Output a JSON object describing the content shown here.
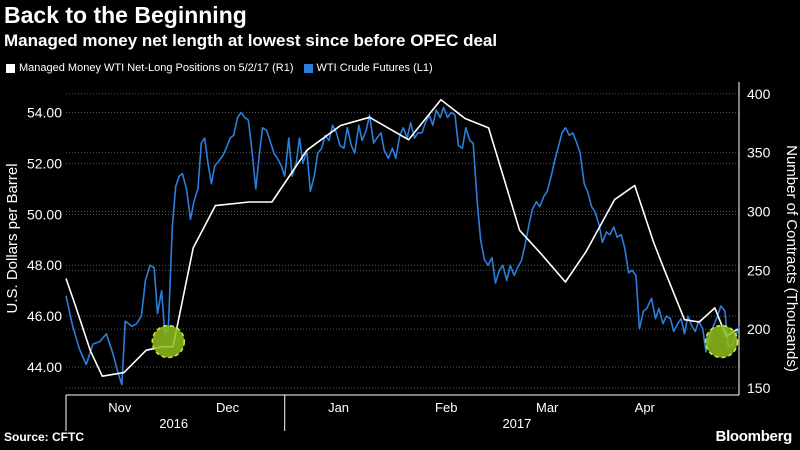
{
  "header": {
    "title": "Back to the Beginning",
    "subtitle": "Managed money net length at lowest since before OPEC deal"
  },
  "footer": {
    "source": "Source: CFTC",
    "brand": "Bloomberg"
  },
  "colors": {
    "background": "#000000",
    "managed_money": "#ffffff",
    "wti": "#2a7fdc",
    "highlight": "#8fbf1f",
    "grid": "#555555"
  },
  "chart_data": {
    "type": "line",
    "x_domain": [
      0,
      100
    ],
    "legend": [
      {
        "name": "Managed Money WTI Net-Long Positions  on 5/2/17  (R1)",
        "color": "#ffffff"
      },
      {
        "name": "WTI Crude Futures  (L1)",
        "color": "#2a7fdc"
      }
    ],
    "left_axis": {
      "label": "U.S. Dollars per Barrel",
      "ticks": [
        "44.00",
        "46.00",
        "48.00",
        "50.00",
        "52.00",
        "54.00"
      ],
      "tick_values": [
        44,
        46,
        48,
        50,
        52,
        54
      ],
      "range": [
        42.9,
        55.2
      ]
    },
    "right_axis": {
      "label": "Number of Contracts (Thousands)",
      "ticks": [
        "150",
        "200",
        "250",
        "300",
        "350",
        "400"
      ],
      "tick_values": [
        150,
        200,
        250,
        300,
        350,
        400
      ],
      "range": [
        144,
        410
      ]
    },
    "months": [
      {
        "label": "Nov",
        "x": 8
      },
      {
        "label": "Dec",
        "x": 24
      },
      {
        "label": "Jan",
        "x": 40.5
      },
      {
        "label": "Feb",
        "x": 56.5
      },
      {
        "label": "Mar",
        "x": 71.5
      },
      {
        "label": "Apr",
        "x": 86
      }
    ],
    "years": [
      {
        "label": "2016",
        "x": 16
      },
      {
        "label": "2017",
        "x": 67
      }
    ],
    "year_divider_x": 32.5,
    "series": [
      {
        "name": "WTI Crude Futures",
        "axis": "left",
        "points": [
          [
            0,
            46.8
          ],
          [
            1,
            45.6
          ],
          [
            2,
            44.7
          ],
          [
            3,
            44.1
          ],
          [
            4,
            44.9
          ],
          [
            5,
            45.0
          ],
          [
            6,
            45.3
          ],
          [
            7,
            44.5
          ],
          [
            7.7,
            43.8
          ],
          [
            8.3,
            43.3
          ],
          [
            8.8,
            45.8
          ],
          [
            9.8,
            45.6
          ],
          [
            10.5,
            45.7
          ],
          [
            11.2,
            46.0
          ],
          [
            11.8,
            47.4
          ],
          [
            12.5,
            48.0
          ],
          [
            13.1,
            47.9
          ],
          [
            13.6,
            46.1
          ],
          [
            14.2,
            47.0
          ],
          [
            14.7,
            45.3
          ],
          [
            15.2,
            45.5
          ],
          [
            15.8,
            49.5
          ],
          [
            16.3,
            51.1
          ],
          [
            16.8,
            51.5
          ],
          [
            17.3,
            51.6
          ],
          [
            17.9,
            51.0
          ],
          [
            18.5,
            49.8
          ],
          [
            19,
            50.5
          ],
          [
            19.6,
            51.0
          ],
          [
            20.1,
            52.8
          ],
          [
            20.6,
            53.0
          ],
          [
            21.1,
            52.0
          ],
          [
            21.6,
            51.2
          ],
          [
            22.1,
            51.9
          ],
          [
            22.7,
            52.1
          ],
          [
            23.3,
            52.3
          ],
          [
            23.8,
            52.6
          ],
          [
            24.4,
            53.0
          ],
          [
            24.9,
            53.1
          ],
          [
            25.5,
            53.8
          ],
          [
            26,
            54.0
          ],
          [
            26.6,
            53.8
          ],
          [
            27.1,
            53.7
          ],
          [
            27.6,
            52.6
          ],
          [
            28.2,
            51.0
          ],
          [
            28.7,
            52.3
          ],
          [
            29.2,
            53.4
          ],
          [
            29.8,
            53.3
          ],
          [
            30.3,
            52.9
          ],
          [
            30.9,
            52.4
          ],
          [
            31.4,
            52.2
          ],
          [
            32,
            51.9
          ],
          [
            32.5,
            51.5
          ],
          [
            33.1,
            53.0
          ],
          [
            33.6,
            51.5
          ],
          [
            34.2,
            52.0
          ],
          [
            34.7,
            53.0
          ],
          [
            35.2,
            52.0
          ],
          [
            35.8,
            52.5
          ],
          [
            36.3,
            50.9
          ],
          [
            36.9,
            51.5
          ],
          [
            37.4,
            52.4
          ],
          [
            38,
            52.6
          ],
          [
            38.5,
            53.1
          ],
          [
            39.1,
            52.9
          ],
          [
            39.6,
            53.5
          ],
          [
            40.2,
            53.2
          ],
          [
            40.7,
            52.7
          ],
          [
            41.3,
            52.6
          ],
          [
            41.8,
            53.4
          ],
          [
            42.4,
            52.7
          ],
          [
            42.9,
            52.4
          ],
          [
            43.5,
            53.5
          ],
          [
            44,
            52.9
          ],
          [
            44.6,
            53.3
          ],
          [
            45.1,
            53.9
          ],
          [
            45.7,
            52.8
          ],
          [
            46.2,
            53.0
          ],
          [
            46.8,
            53.2
          ],
          [
            47.3,
            52.5
          ],
          [
            47.9,
            52.2
          ],
          [
            48.5,
            52.6
          ],
          [
            49,
            52.2
          ],
          [
            49.6,
            53.1
          ],
          [
            50.1,
            53.4
          ],
          [
            50.7,
            53.0
          ],
          [
            51.2,
            53.6
          ],
          [
            51.8,
            53.0
          ],
          [
            52.3,
            53.2
          ],
          [
            52.9,
            53.2
          ],
          [
            53.4,
            53.6
          ],
          [
            54,
            53.9
          ],
          [
            54.5,
            53.5
          ],
          [
            55,
            54.1
          ],
          [
            55.6,
            53.8
          ],
          [
            56.1,
            54.2
          ],
          [
            56.7,
            53.8
          ],
          [
            57.2,
            54.0
          ],
          [
            57.8,
            53.9
          ],
          [
            58.3,
            52.7
          ],
          [
            58.9,
            52.6
          ],
          [
            59.4,
            53.4
          ],
          [
            60,
            52.9
          ],
          [
            60.5,
            52.8
          ],
          [
            61.1,
            50.5
          ],
          [
            61.6,
            49.0
          ],
          [
            62.2,
            48.2
          ],
          [
            62.7,
            48.0
          ],
          [
            63.3,
            48.3
          ],
          [
            63.8,
            47.3
          ],
          [
            64.4,
            47.8
          ],
          [
            64.9,
            48.0
          ],
          [
            65.5,
            47.4
          ],
          [
            66,
            48.0
          ],
          [
            66.6,
            47.6
          ],
          [
            67.1,
            47.9
          ],
          [
            67.7,
            48.2
          ],
          [
            68.2,
            48.8
          ],
          [
            68.8,
            49.6
          ],
          [
            69.3,
            50.2
          ],
          [
            69.9,
            50.5
          ],
          [
            70.4,
            50.3
          ],
          [
            71,
            50.7
          ],
          [
            71.5,
            50.9
          ],
          [
            72.1,
            51.5
          ],
          [
            72.6,
            52.1
          ],
          [
            73.1,
            52.6
          ],
          [
            73.7,
            53.2
          ],
          [
            74.2,
            53.4
          ],
          [
            74.8,
            53.1
          ],
          [
            75.3,
            53.2
          ],
          [
            75.9,
            52.8
          ],
          [
            76.4,
            52.4
          ],
          [
            77,
            51.2
          ],
          [
            77.5,
            50.9
          ],
          [
            78.1,
            50.3
          ],
          [
            78.6,
            50.1
          ],
          [
            79.2,
            49.6
          ],
          [
            79.7,
            48.9
          ],
          [
            80.3,
            49.3
          ],
          [
            80.8,
            49.2
          ],
          [
            81.4,
            49.5
          ],
          [
            81.9,
            49.1
          ],
          [
            82.5,
            49.2
          ],
          [
            83,
            48.7
          ],
          [
            83.6,
            47.7
          ],
          [
            84.1,
            47.8
          ],
          [
            84.7,
            47.6
          ],
          [
            85.2,
            45.5
          ],
          [
            85.8,
            46.2
          ],
          [
            86.3,
            46.3
          ],
          [
            87,
            46.7
          ],
          [
            87.6,
            45.9
          ],
          [
            88.1,
            46.3
          ],
          [
            88.7,
            45.7
          ],
          [
            89.2,
            46.0
          ],
          [
            89.8,
            45.9
          ],
          [
            90.3,
            45.4
          ],
          [
            90.9,
            45.7
          ],
          [
            91.4,
            45.9
          ],
          [
            91.9,
            45.3
          ],
          [
            92.4,
            46.0
          ],
          [
            93,
            45.6
          ],
          [
            93.5,
            45.4
          ],
          [
            94,
            45.8
          ],
          [
            94.6,
            45.5
          ],
          [
            95.1,
            44.6
          ],
          [
            95.7,
            45.3
          ],
          [
            96.2,
            45.6
          ],
          [
            96.8,
            46.0
          ],
          [
            97.3,
            46.4
          ],
          [
            97.9,
            46.2
          ],
          [
            98.4,
            44.8
          ],
          [
            99,
            44.9
          ],
          [
            99.5,
            45.2
          ],
          [
            100,
            45.6
          ]
        ]
      },
      {
        "name": "Managed Money WTI Net-Long Positions",
        "axis": "right",
        "points": [
          [
            0,
            243
          ],
          [
            1.4,
            220
          ],
          [
            3.6,
            182
          ],
          [
            5.4,
            160
          ],
          [
            8.6,
            163
          ],
          [
            11.9,
            182
          ],
          [
            14.2,
            185
          ],
          [
            15.9,
            185
          ],
          [
            18.9,
            269
          ],
          [
            22.2,
            305
          ],
          [
            27.2,
            308
          ],
          [
            30.6,
            308
          ],
          [
            35.8,
            352
          ],
          [
            40.8,
            373
          ],
          [
            45.1,
            380
          ],
          [
            50.9,
            361
          ],
          [
            55.7,
            395
          ],
          [
            59.3,
            379
          ],
          [
            62.8,
            371
          ],
          [
            67.4,
            284
          ],
          [
            70.6,
            264
          ],
          [
            74.2,
            240
          ],
          [
            77.3,
            266
          ],
          [
            81.5,
            310
          ],
          [
            84.5,
            322
          ],
          [
            87.3,
            274
          ],
          [
            88.8,
            252
          ],
          [
            91.9,
            208
          ],
          [
            94.1,
            206
          ],
          [
            96.4,
            218
          ],
          [
            98.1,
            194
          ],
          [
            99.8,
            200
          ]
        ]
      }
    ],
    "highlights": [
      {
        "x": 15.2,
        "value": 45.0,
        "axis": "left"
      },
      {
        "x": 97.4,
        "value": 45.0,
        "axis": "left"
      }
    ]
  }
}
